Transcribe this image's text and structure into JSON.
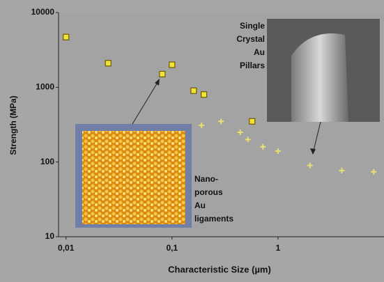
{
  "chart_data": {
    "type": "scatter",
    "xlabel": "Characteristic Size (µm)",
    "ylabel": "Strength (MPa)",
    "xscale": "log",
    "yscale": "log",
    "xlim": [
      0.0085,
      10
    ],
    "ylim": [
      10,
      10000
    ],
    "xticks": [
      {
        "value": 0.01,
        "label": "0,01"
      },
      {
        "value": 0.1,
        "label": "0,1"
      },
      1
    ],
    "yticks": [
      10,
      100,
      1000,
      10000
    ],
    "series": [
      {
        "color": "#f2e23a",
        "marker": "square",
        "x": [
          0.01,
          0.025,
          0.081,
          0.1,
          0.16,
          0.2,
          0.57
        ],
        "values": [
          4700,
          2100,
          1500,
          2000,
          900,
          800,
          350
        ]
      },
      {
        "color": "#e8e070",
        "marker": "cross",
        "x": [
          0.19,
          0.29,
          0.44,
          0.52,
          0.72,
          1.0,
          2.0,
          4.0,
          8.0
        ],
        "values": [
          310,
          350,
          250,
          200,
          160,
          140,
          90,
          77,
          74
        ]
      }
    ],
    "annotations": [
      {
        "lines": [
          "Single",
          "Crystal",
          "Au",
          "Pillars"
        ]
      },
      {
        "lines": [
          "Nano-",
          "porous",
          "Au",
          "ligaments"
        ]
      }
    ]
  }
}
